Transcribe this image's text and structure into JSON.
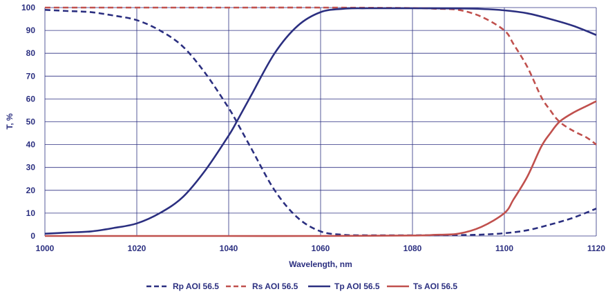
{
  "chart_data": {
    "type": "line",
    "xlabel": "Wavelength, nm",
    "ylabel": "T, %",
    "xlim": [
      1000,
      1120
    ],
    "ylim": [
      0,
      100
    ],
    "x_ticks": [
      "1000",
      "1020",
      "1040",
      "1060",
      "1080",
      "1100",
      "1120"
    ],
    "y_ticks": [
      "0",
      "10",
      "20",
      "30",
      "40",
      "50",
      "60",
      "70",
      "80",
      "90",
      "100"
    ],
    "grid": true,
    "legend_position": "bottom",
    "colors": {
      "p": "#2b2f80",
      "s": "#c0504d",
      "grid": "#2b2f80"
    },
    "series": [
      {
        "name": "Rp AOI 56.5",
        "color": "#2b2f80",
        "dash": true,
        "x": [
          1000,
          1005,
          1010,
          1015,
          1020,
          1025,
          1030,
          1035,
          1040,
          1042,
          1045,
          1050,
          1055,
          1060,
          1065,
          1070,
          1080,
          1090,
          1095,
          1100,
          1105,
          1110,
          1115,
          1120
        ],
        "y": [
          99,
          98.5,
          98,
          96.5,
          94.5,
          90,
          83,
          71,
          56,
          49,
          38,
          20,
          8,
          2,
          0.5,
          0.3,
          0.3,
          0.4,
          0.6,
          1.2,
          2.5,
          5,
          8,
          12
        ]
      },
      {
        "name": "Rs AOI 56.5",
        "color": "#c0504d",
        "dash": true,
        "x": [
          1000,
          1020,
          1040,
          1060,
          1080,
          1085,
          1090,
          1095,
          1100,
          1102,
          1105,
          1108,
          1110,
          1112,
          1115,
          1118,
          1120
        ],
        "y": [
          100,
          100,
          100,
          100,
          99.8,
          99.5,
          99,
          96,
          90,
          84,
          74,
          61,
          55,
          50,
          46,
          43,
          40
        ]
      },
      {
        "name": "Tp AOI 56.5",
        "color": "#2b2f80",
        "dash": false,
        "x": [
          1000,
          1005,
          1010,
          1015,
          1020,
          1025,
          1030,
          1035,
          1040,
          1042,
          1045,
          1050,
          1055,
          1060,
          1065,
          1070,
          1080,
          1090,
          1095,
          1100,
          1105,
          1110,
          1115,
          1120
        ],
        "y": [
          1,
          1.5,
          2,
          3.5,
          5.5,
          10,
          17,
          29,
          44,
          51,
          62,
          80,
          92,
          98,
          99.5,
          99.7,
          99.7,
          99.6,
          99.4,
          98.8,
          97.5,
          95,
          92,
          88
        ]
      },
      {
        "name": "Ts AOI 56.5",
        "color": "#c0504d",
        "dash": false,
        "x": [
          1000,
          1020,
          1040,
          1060,
          1080,
          1085,
          1090,
          1095,
          1100,
          1102,
          1105,
          1108,
          1110,
          1112,
          1115,
          1118,
          1120
        ],
        "y": [
          0,
          0,
          0,
          0,
          0.2,
          0.5,
          1,
          4,
          10,
          16,
          26,
          39,
          45,
          50,
          54,
          57,
          59
        ]
      }
    ]
  }
}
